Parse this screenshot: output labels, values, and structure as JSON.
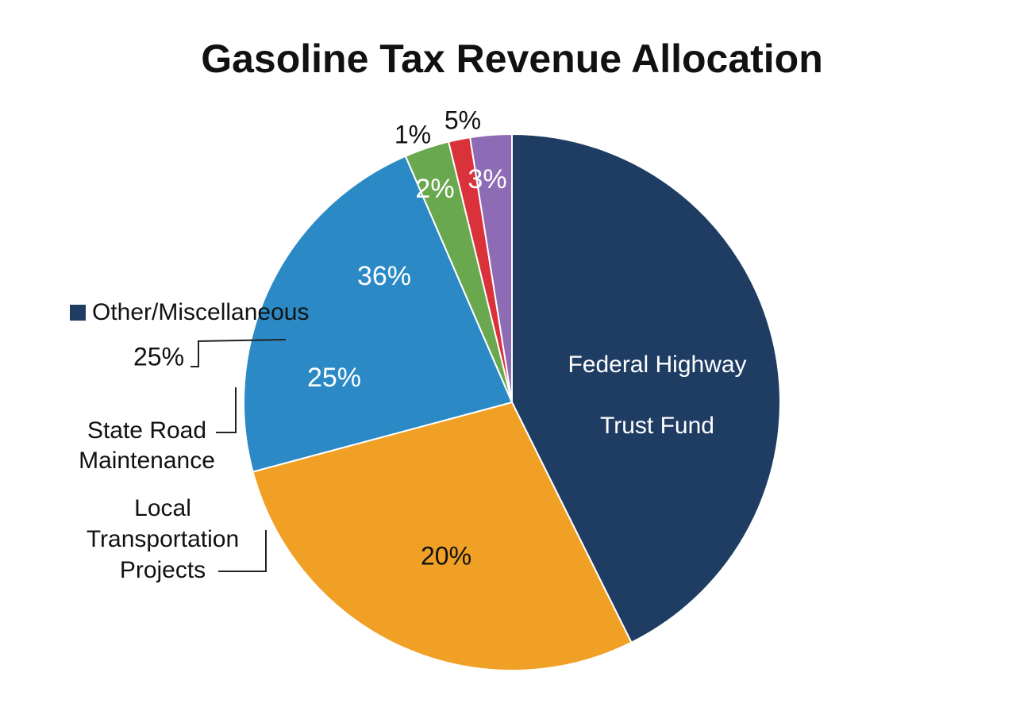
{
  "chart_data": {
    "type": "pie",
    "title": "Gasoline Tax Revenue Allocation",
    "categories": [
      "Federal Highway Trust Fund",
      "Local Transportation Projects",
      "State Road Maintenance",
      null,
      null,
      null
    ],
    "values": [
      42.7,
      28.2,
      22.7,
      2.7,
      1.3,
      2.5
    ],
    "colors": [
      "#1f3d63",
      "#f0a024",
      "#2b8ac6",
      "#6aa84f",
      "#d9323a",
      "#8e6bb5"
    ],
    "legend": {
      "label": "Other/Miscellaneous",
      "color": "#1f3d63"
    },
    "annotations": [
      {
        "text": "36%",
        "color": "#ffffff"
      },
      {
        "text": "25%",
        "color": "#ffffff"
      },
      {
        "text": "2%",
        "color": "#ffffff"
      },
      {
        "text": "3%",
        "color": "#ffffff"
      },
      {
        "text": "1%",
        "color": "#111111"
      },
      {
        "text": "5%",
        "color": "#111111"
      },
      {
        "text": "20%",
        "color": "#111111"
      },
      {
        "text": "25%",
        "color": "#111111"
      }
    ]
  }
}
